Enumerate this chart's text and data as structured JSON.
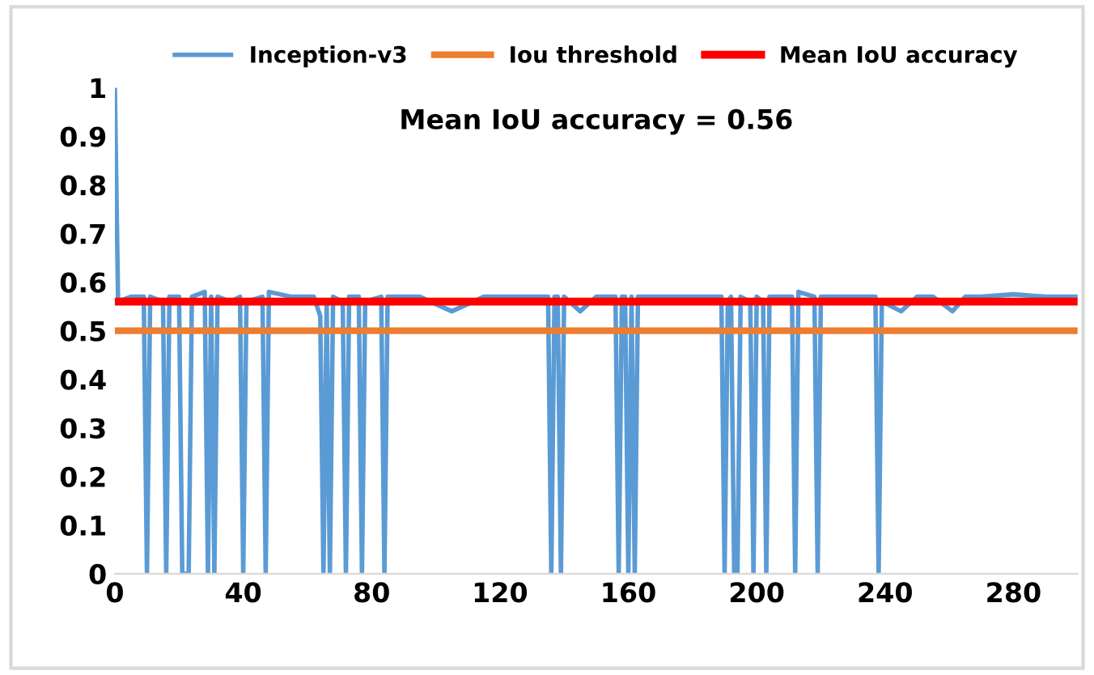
{
  "chart_data": {
    "type": "line",
    "annotations": [
      "Mean IoU accuracy = 0.56"
    ],
    "xlim": [
      0,
      300
    ],
    "xticks": [
      0,
      40,
      80,
      120,
      160,
      200,
      240,
      280
    ],
    "ylim": [
      0,
      1
    ],
    "yticks": [
      0,
      0.1,
      0.2,
      0.3,
      0.4,
      0.5,
      0.6,
      0.7,
      0.8,
      0.9,
      1
    ],
    "grid": false,
    "legend": "top",
    "marker": "none",
    "line_style": "solid",
    "series": [
      {
        "name": "Inception-v3",
        "color": "#5b9bd5",
        "x": [
          0,
          1,
          5,
          9,
          10,
          11,
          15,
          16,
          17,
          20,
          21,
          22,
          23,
          24,
          28,
          29,
          30,
          31,
          32,
          36,
          39,
          40,
          41,
          46,
          47,
          48,
          55,
          62,
          64,
          65,
          66,
          67,
          68,
          71,
          72,
          73,
          76,
          77,
          78,
          83,
          84,
          85,
          95,
          105,
          115,
          125,
          135,
          136,
          137,
          138,
          139,
          140,
          145,
          150,
          156,
          157,
          158,
          159,
          160,
          161,
          162,
          163,
          170,
          180,
          189,
          190,
          191,
          192,
          193,
          194,
          195,
          198,
          199,
          200,
          202,
          203,
          204,
          211,
          212,
          213,
          218,
          219,
          220,
          230,
          237,
          238,
          239,
          245,
          250,
          255,
          261,
          265,
          270,
          280,
          290,
          300
        ],
        "values": [
          1,
          0.56,
          0.57,
          0.57,
          0,
          0.57,
          0.56,
          0,
          0.57,
          0.57,
          0,
          0,
          0,
          0.57,
          0.58,
          0,
          0.57,
          0,
          0.57,
          0.56,
          0.57,
          0,
          0.56,
          0.57,
          0,
          0.58,
          0.57,
          0.57,
          0.53,
          0,
          0.56,
          0,
          0.57,
          0.56,
          0,
          0.57,
          0.57,
          0,
          0.56,
          0.57,
          0,
          0.57,
          0.57,
          0.54,
          0.57,
          0.57,
          0.57,
          0,
          0.57,
          0.57,
          0,
          0.57,
          0.54,
          0.57,
          0.57,
          0,
          0.57,
          0.57,
          0,
          0.57,
          0,
          0.57,
          0.57,
          0.57,
          0.57,
          0,
          0.56,
          0.57,
          0,
          0,
          0.57,
          0.56,
          0,
          0.57,
          0.56,
          0,
          0.57,
          0.57,
          0,
          0.58,
          0.57,
          0,
          0.57,
          0.57,
          0.57,
          0,
          0.56,
          0.54,
          0.57,
          0.57,
          0.54,
          0.57,
          0.57,
          0.575,
          0.57,
          0.57
        ]
      },
      {
        "name": "Iou threshold",
        "color": "#ed7d31",
        "x": [
          0,
          300
        ],
        "values": [
          0.5,
          0.5
        ]
      },
      {
        "name": "Mean IoU accuracy",
        "color": "#ff0000",
        "x": [
          0,
          300
        ],
        "values": [
          0.56,
          0.56
        ]
      }
    ]
  }
}
